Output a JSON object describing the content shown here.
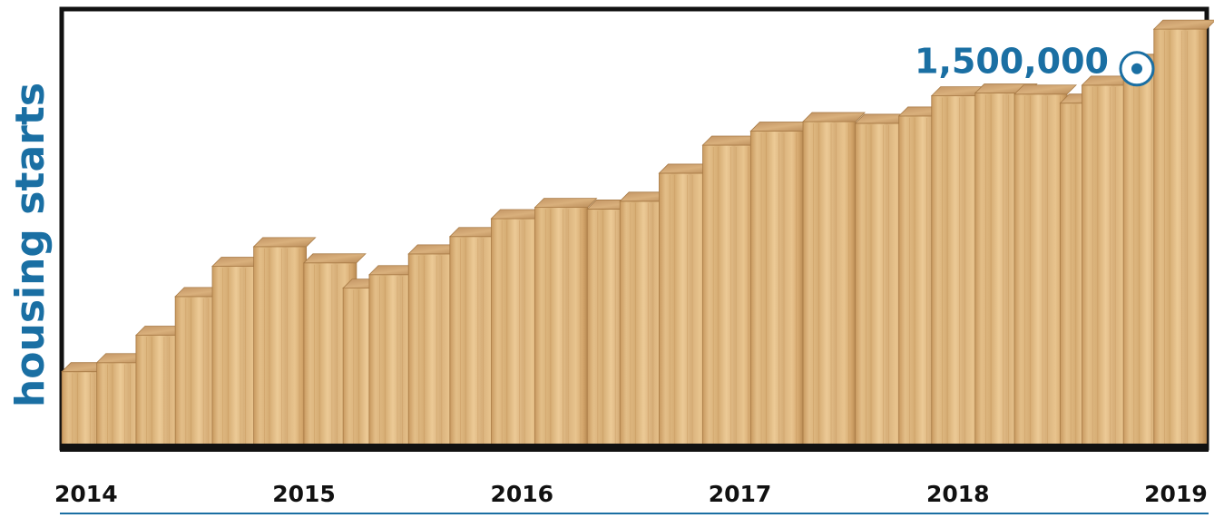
{
  "chart_data": {
    "type": "bar",
    "ylabel": "housing starts",
    "annotation": "1,500,000",
    "annotation_value": 1500000,
    "x": [
      2014.01,
      2014.17,
      2014.35,
      2014.53,
      2014.7,
      2014.89,
      2015.12,
      2015.3,
      2015.42,
      2015.6,
      2015.79,
      2015.98,
      2016.18,
      2016.42,
      2016.57,
      2016.75,
      2016.95,
      2017.17,
      2017.41,
      2017.65,
      2017.85,
      2018.0,
      2018.2,
      2018.38,
      2018.59,
      2018.69,
      2018.88,
      2019.02
    ],
    "values": [
      950000,
      966000,
      1015000,
      1084000,
      1138000,
      1173000,
      1144000,
      1099000,
      1123000,
      1160000,
      1191000,
      1223000,
      1243000,
      1240000,
      1254000,
      1304000,
      1354000,
      1379000,
      1396000,
      1393000,
      1406000,
      1442000,
      1447000,
      1445000,
      1429000,
      1461000,
      1500000,
      1561000
    ],
    "xlim": [
      2013.88,
      2019.15
    ],
    "xticks": [
      2014,
      2015,
      2016,
      2017,
      2018,
      2019
    ],
    "ylim": [
      820000,
      1600000
    ],
    "color": "#dcb67e",
    "accent_color": "#1a6fa3"
  }
}
